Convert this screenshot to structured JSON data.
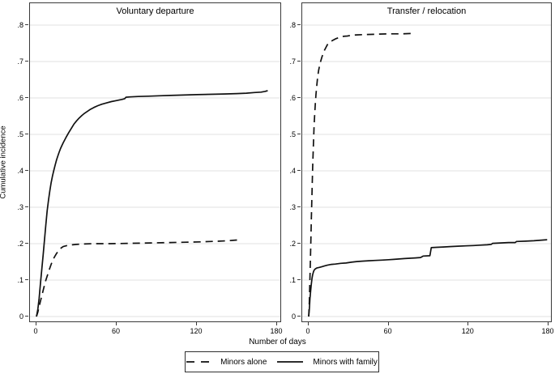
{
  "chart_data": {
    "type": "line",
    "xlabel": "Number of days",
    "ylabel": "Cumulative incidence",
    "x_ticks": [
      0,
      60,
      120,
      180
    ],
    "y_ticks": [
      0,
      0.1,
      0.2,
      0.3,
      0.4,
      0.5,
      0.6,
      0.7,
      0.8
    ],
    "y_tick_labels": [
      "0",
      ".1",
      ".2",
      ".3",
      ".4",
      ".5",
      ".6",
      ".7",
      ".8"
    ],
    "xlim": [
      -5,
      184
    ],
    "ylim": [
      -0.016,
      0.862
    ],
    "grid": "horizontal",
    "legend_position": "bottom",
    "colors": {
      "line": "#111111",
      "grid": "#e6e6e6",
      "border": "#3a3a3a",
      "background": "#ffffff"
    },
    "legend": [
      {
        "label": "Minors alone",
        "style": "dashed"
      },
      {
        "label": "Minors with family",
        "style": "solid"
      }
    ],
    "panels": [
      {
        "title": "Voluntary departure",
        "series": [
          {
            "name": "Minors alone",
            "style": "dashed",
            "points": [
              [
                0,
                0
              ],
              [
                1,
                0.012
              ],
              [
                2,
                0.027
              ],
              [
                3,
                0.042
              ],
              [
                4,
                0.057
              ],
              [
                5,
                0.072
              ],
              [
                6,
                0.086
              ],
              [
                7,
                0.099
              ],
              [
                8,
                0.111
              ],
              [
                9,
                0.122
              ],
              [
                10,
                0.133
              ],
              [
                11,
                0.143
              ],
              [
                12,
                0.152
              ],
              [
                13,
                0.16
              ],
              [
                14,
                0.167
              ],
              [
                15,
                0.173
              ],
              [
                16,
                0.178
              ],
              [
                17,
                0.183
              ],
              [
                18,
                0.187
              ],
              [
                20,
                0.192
              ],
              [
                22,
                0.194
              ],
              [
                24,
                0.196
              ],
              [
                27,
                0.197
              ],
              [
                30,
                0.198
              ],
              [
                35,
                0.199
              ],
              [
                42,
                0.2
              ],
              [
                55,
                0.2
              ],
              [
                70,
                0.201
              ],
              [
                85,
                0.202
              ],
              [
                100,
                0.203
              ],
              [
                112,
                0.204
              ],
              [
                122,
                0.205
              ],
              [
                130,
                0.206
              ],
              [
                137,
                0.207
              ],
              [
                143,
                0.208
              ],
              [
                147,
                0.209
              ],
              [
                150,
                0.21
              ]
            ]
          },
          {
            "name": "Minors with family",
            "style": "solid",
            "points": [
              [
                0,
                0
              ],
              [
                1,
                0.02
              ],
              [
                2,
                0.05
              ],
              [
                3,
                0.09
              ],
              [
                4,
                0.13
              ],
              [
                5,
                0.17
              ],
              [
                6,
                0.21
              ],
              [
                7,
                0.25
              ],
              [
                8,
                0.29
              ],
              [
                9,
                0.32
              ],
              [
                10,
                0.345
              ],
              [
                11,
                0.367
              ],
              [
                12,
                0.386
              ],
              [
                13,
                0.401
              ],
              [
                14,
                0.416
              ],
              [
                15,
                0.43
              ],
              [
                16,
                0.441
              ],
              [
                17,
                0.451
              ],
              [
                18,
                0.461
              ],
              [
                19,
                0.469
              ],
              [
                20,
                0.477
              ],
              [
                22,
                0.491
              ],
              [
                24,
                0.504
              ],
              [
                26,
                0.516
              ],
              [
                28,
                0.528
              ],
              [
                30,
                0.537
              ],
              [
                32,
                0.545
              ],
              [
                34,
                0.552
              ],
              [
                36,
                0.558
              ],
              [
                38,
                0.563
              ],
              [
                40,
                0.568
              ],
              [
                43,
                0.574
              ],
              [
                46,
                0.579
              ],
              [
                49,
                0.583
              ],
              [
                52,
                0.586
              ],
              [
                56,
                0.59
              ],
              [
                60,
                0.593
              ],
              [
                64,
                0.596
              ],
              [
                66,
                0.598
              ],
              [
                67,
                0.602
              ],
              [
                70,
                0.603
              ],
              [
                76,
                0.604
              ],
              [
                84,
                0.605
              ],
              [
                92,
                0.606
              ],
              [
                100,
                0.607
              ],
              [
                110,
                0.608
              ],
              [
                120,
                0.609
              ],
              [
                130,
                0.61
              ],
              [
                140,
                0.611
              ],
              [
                150,
                0.612
              ],
              [
                157,
                0.613
              ],
              [
                163,
                0.615
              ],
              [
                168,
                0.616
              ],
              [
                171,
                0.618
              ],
              [
                173,
                0.62
              ]
            ]
          }
        ]
      },
      {
        "title": "Transfer / relocation",
        "series": [
          {
            "name": "Minors alone",
            "style": "dashed",
            "points": [
              [
                0,
                0
              ],
              [
                0.5,
                0.04
              ],
              [
                1,
                0.11
              ],
              [
                1.5,
                0.19
              ],
              [
                2,
                0.27
              ],
              [
                2.5,
                0.34
              ],
              [
                3,
                0.41
              ],
              [
                3.5,
                0.47
              ],
              [
                4,
                0.52
              ],
              [
                4.5,
                0.555
              ],
              [
                5,
                0.585
              ],
              [
                5.5,
                0.61
              ],
              [
                6,
                0.632
              ],
              [
                6.5,
                0.65
              ],
              [
                7,
                0.664
              ],
              [
                7.5,
                0.676
              ],
              [
                8,
                0.686
              ],
              [
                9,
                0.701
              ],
              [
                10,
                0.713
              ],
              [
                11,
                0.723
              ],
              [
                12,
                0.732
              ],
              [
                13,
                0.739
              ],
              [
                14,
                0.746
              ],
              [
                15,
                0.751
              ],
              [
                16,
                0.754
              ],
              [
                18,
                0.758
              ],
              [
                20,
                0.762
              ],
              [
                22,
                0.765
              ],
              [
                24,
                0.767
              ],
              [
                26,
                0.769
              ],
              [
                29,
                0.77
              ],
              [
                32,
                0.772
              ],
              [
                36,
                0.773
              ],
              [
                42,
                0.774
              ],
              [
                50,
                0.775
              ],
              [
                60,
                0.776
              ],
              [
                70,
                0.776
              ],
              [
                78,
                0.777
              ]
            ]
          },
          {
            "name": "Minors with family",
            "style": "solid",
            "points": [
              [
                0,
                0
              ],
              [
                0.5,
                0.02
              ],
              [
                1,
                0.05
              ],
              [
                1.5,
                0.072
              ],
              [
                2,
                0.09
              ],
              [
                2.5,
                0.105
              ],
              [
                3,
                0.115
              ],
              [
                3.5,
                0.122
              ],
              [
                4,
                0.127
              ],
              [
                5,
                0.131
              ],
              [
                6,
                0.133
              ],
              [
                8,
                0.135
              ],
              [
                10,
                0.137
              ],
              [
                12,
                0.139
              ],
              [
                14,
                0.141
              ],
              [
                17,
                0.143
              ],
              [
                20,
                0.144
              ],
              [
                24,
                0.146
              ],
              [
                28,
                0.147
              ],
              [
                32,
                0.149
              ],
              [
                36,
                0.151
              ],
              [
                40,
                0.152
              ],
              [
                45,
                0.153
              ],
              [
                50,
                0.154
              ],
              [
                55,
                0.155
              ],
              [
                60,
                0.156
              ],
              [
                64,
                0.157
              ],
              [
                68,
                0.158
              ],
              [
                72,
                0.159
              ],
              [
                76,
                0.16
              ],
              [
                80,
                0.161
              ],
              [
                84,
                0.162
              ],
              [
                86,
                0.166
              ],
              [
                91,
                0.167
              ],
              [
                92,
                0.189
              ],
              [
                96,
                0.19
              ],
              [
                101,
                0.191
              ],
              [
                106,
                0.192
              ],
              [
                112,
                0.193
              ],
              [
                118,
                0.194
              ],
              [
                124,
                0.195
              ],
              [
                129,
                0.196
              ],
              [
                134,
                0.197
              ],
              [
                137,
                0.198
              ],
              [
                138,
                0.201
              ],
              [
                144,
                0.202
              ],
              [
                150,
                0.203
              ],
              [
                155,
                0.203
              ],
              [
                156,
                0.206
              ],
              [
                163,
                0.207
              ],
              [
                169,
                0.208
              ],
              [
                173,
                0.209
              ],
              [
                176,
                0.21
              ],
              [
                179,
                0.211
              ]
            ]
          }
        ]
      }
    ]
  }
}
